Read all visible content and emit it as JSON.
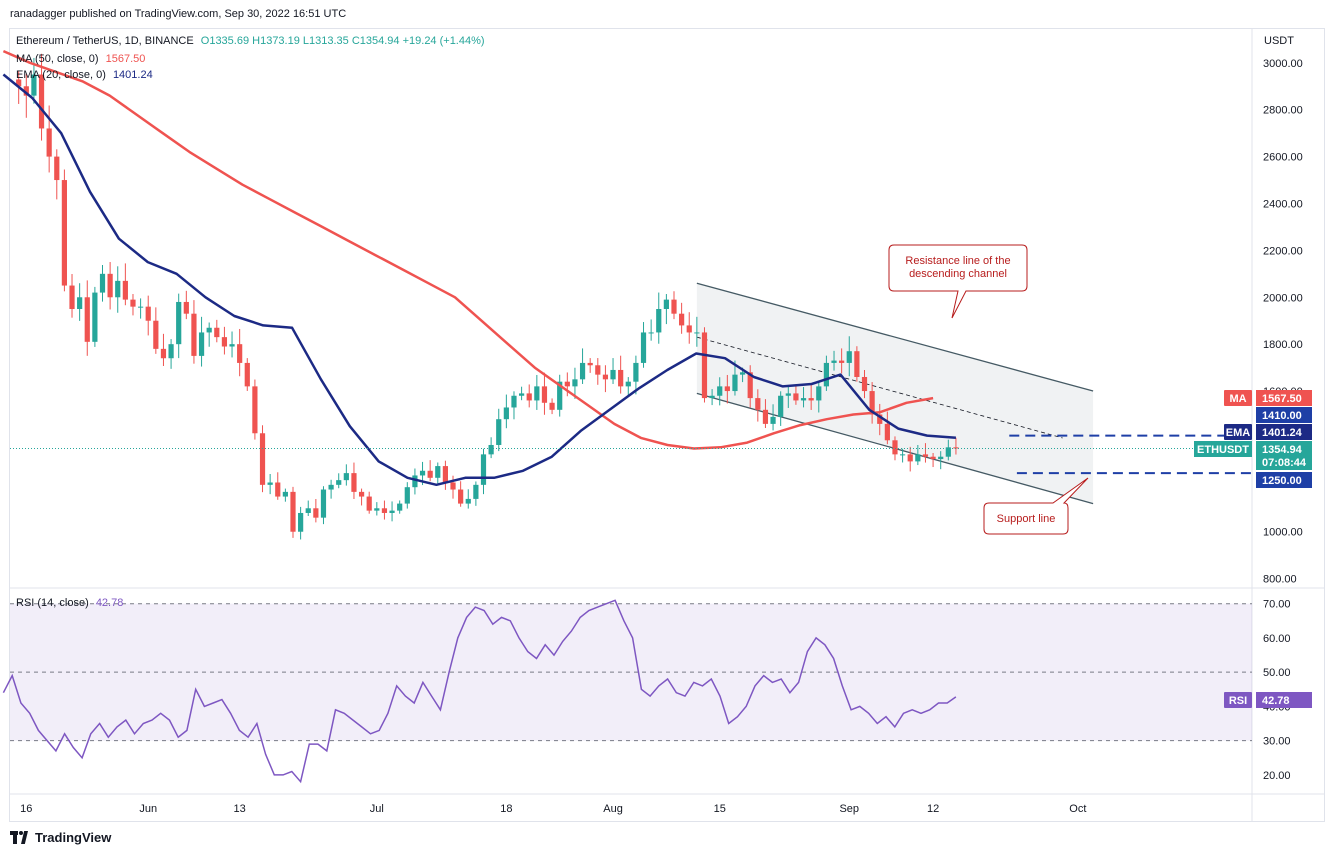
{
  "header": {
    "published": "ranadagger published on TradingView.com, Sep 30, 2022 16:51 UTC"
  },
  "legend": {
    "symbol": "Ethereum / TetherUS, 1D, BINANCE",
    "ohlc": "O1335.69 H1373.19 L1313.35 C1354.94 +19.24 (+1.44%)",
    "ma_label": "MA (50, close, 0)",
    "ma_value": "1567.50",
    "ema_label": "EMA (20, close, 0)",
    "ema_value": "1401.24",
    "rsi_label": "RSI (14, close)",
    "rsi_value": "42.78"
  },
  "axis": {
    "currency": "USDT",
    "price_ticks": [
      "3000.00",
      "2800.00",
      "2600.00",
      "2400.00",
      "2200.00",
      "2000.00",
      "1800.00",
      "1600.00",
      "1000.00",
      "800.00"
    ],
    "rsi_ticks": [
      "70.00",
      "60.00",
      "50.00",
      "40.00",
      "30.00",
      "20.00"
    ],
    "time_ticks": [
      "16",
      "Jun",
      "13",
      "Jul",
      "18",
      "Aug",
      "15",
      "Sep",
      "12",
      "Oct"
    ]
  },
  "price_tags": {
    "ma": {
      "label": "MA",
      "value": "1567.50"
    },
    "level_high": "1410.00",
    "ema": {
      "label": "EMA",
      "value": "1401.24"
    },
    "symbol": {
      "label": "ETHUSDT",
      "value": "1354.94",
      "countdown": "07:08:44"
    },
    "level_low": "1250.00",
    "rsi": {
      "label": "RSI",
      "value": "42.78"
    }
  },
  "annotations": {
    "resistance": "Resistance line of the descending channel",
    "support": "Support line"
  },
  "brand": "TradingView",
  "colors": {
    "up": "#26a69a",
    "down": "#ef5350",
    "ma": "#ef5350",
    "ema": "#1c2a85",
    "rsi": "#7e57c2",
    "level": "#1e3fa6",
    "channel": "#455a64"
  },
  "chart_data": {
    "type": "candlestick",
    "symbol": "ETHUSDT",
    "y_range": [
      760,
      3140
    ],
    "rsi_range": [
      15,
      74
    ],
    "x_labels": [
      "16",
      "Jun",
      "13",
      "Jul",
      "18",
      "Aug",
      "15",
      "Sep",
      "12",
      "Oct"
    ],
    "closes": [
      2900,
      2860,
      2950,
      2720,
      2600,
      2500,
      2050,
      1950,
      2000,
      1810,
      2020,
      2100,
      2000,
      2070,
      1990,
      1960,
      1960,
      1900,
      1780,
      1740,
      1800,
      1980,
      1930,
      1750,
      1850,
      1870,
      1830,
      1790,
      1800,
      1720,
      1620,
      1420,
      1200,
      1210,
      1150,
      1170,
      1000,
      1080,
      1100,
      1060,
      1180,
      1200,
      1220,
      1250,
      1170,
      1150,
      1090,
      1100,
      1080,
      1090,
      1120,
      1190,
      1240,
      1260,
      1230,
      1280,
      1210,
      1180,
      1120,
      1140,
      1200,
      1330,
      1370,
      1480,
      1530,
      1580,
      1590,
      1560,
      1620,
      1550,
      1520,
      1640,
      1620,
      1650,
      1720,
      1710,
      1670,
      1650,
      1690,
      1620,
      1640,
      1720,
      1850,
      1850,
      1950,
      1990,
      1930,
      1880,
      1850,
      1850,
      1570,
      1580,
      1620,
      1600,
      1670,
      1680,
      1570,
      1520,
      1460,
      1490,
      1580,
      1590,
      1560,
      1570,
      1560,
      1620,
      1720,
      1730,
      1720,
      1770,
      1660,
      1600,
      1500,
      1460,
      1390,
      1330,
      1330,
      1300,
      1330,
      1320,
      1310,
      1320,
      1360,
      1355
    ],
    "ma50": [
      3050,
      3000,
      2960,
      2920,
      2860,
      2780,
      2700,
      2620,
      2550,
      2480,
      2420,
      2360,
      2300,
      2240,
      2180,
      2120,
      2060,
      2000,
      1900,
      1800,
      1700,
      1620,
      1540,
      1460,
      1400,
      1370,
      1355,
      1360,
      1380,
      1420,
      1455,
      1480,
      1500,
      1510,
      1550,
      1570
    ],
    "ema20": [
      2950,
      2850,
      2700,
      2450,
      2250,
      2150,
      2100,
      2000,
      1920,
      1880,
      1870,
      1650,
      1450,
      1300,
      1230,
      1200,
      1230,
      1230,
      1260,
      1320,
      1430,
      1520,
      1610,
      1690,
      1760,
      1740,
      1660,
      1620,
      1630,
      1670,
      1520,
      1440,
      1410,
      1401
    ],
    "levels": [
      1410,
      1250
    ],
    "rsi": [
      44,
      49,
      41,
      38,
      33,
      30,
      27,
      32,
      28,
      25,
      32,
      35,
      31,
      34,
      36,
      32,
      35,
      36,
      38,
      36,
      31,
      33,
      45,
      40,
      41,
      42,
      38,
      33,
      31,
      35,
      26,
      20,
      20,
      21,
      18,
      29,
      29,
      27,
      39,
      38,
      36,
      34,
      32,
      33,
      38,
      46,
      43,
      41,
      47,
      43,
      39,
      50,
      60,
      66,
      69,
      68,
      64,
      66,
      65,
      60,
      56,
      54,
      58,
      55,
      59,
      62,
      66,
      68,
      69,
      70,
      71,
      65,
      60,
      45,
      43,
      46,
      48,
      44,
      43,
      47,
      46,
      48,
      43,
      35,
      37,
      40,
      46,
      49,
      47,
      48,
      44,
      47,
      56,
      60,
      58,
      54,
      46,
      39,
      40,
      38,
      35,
      37,
      34,
      38,
      39,
      38,
      39,
      41,
      41,
      42.78
    ],
    "channel": {
      "upper": [
        [
          "Aug 12",
          2060
        ],
        [
          "Oct 3",
          1600
        ]
      ],
      "lower": [
        [
          "Aug 12",
          1590
        ],
        [
          "Oct 3",
          1120
        ]
      ],
      "mid": [
        [
          "Aug 12",
          1830
        ],
        [
          "Sep 29",
          1400
        ]
      ]
    }
  }
}
